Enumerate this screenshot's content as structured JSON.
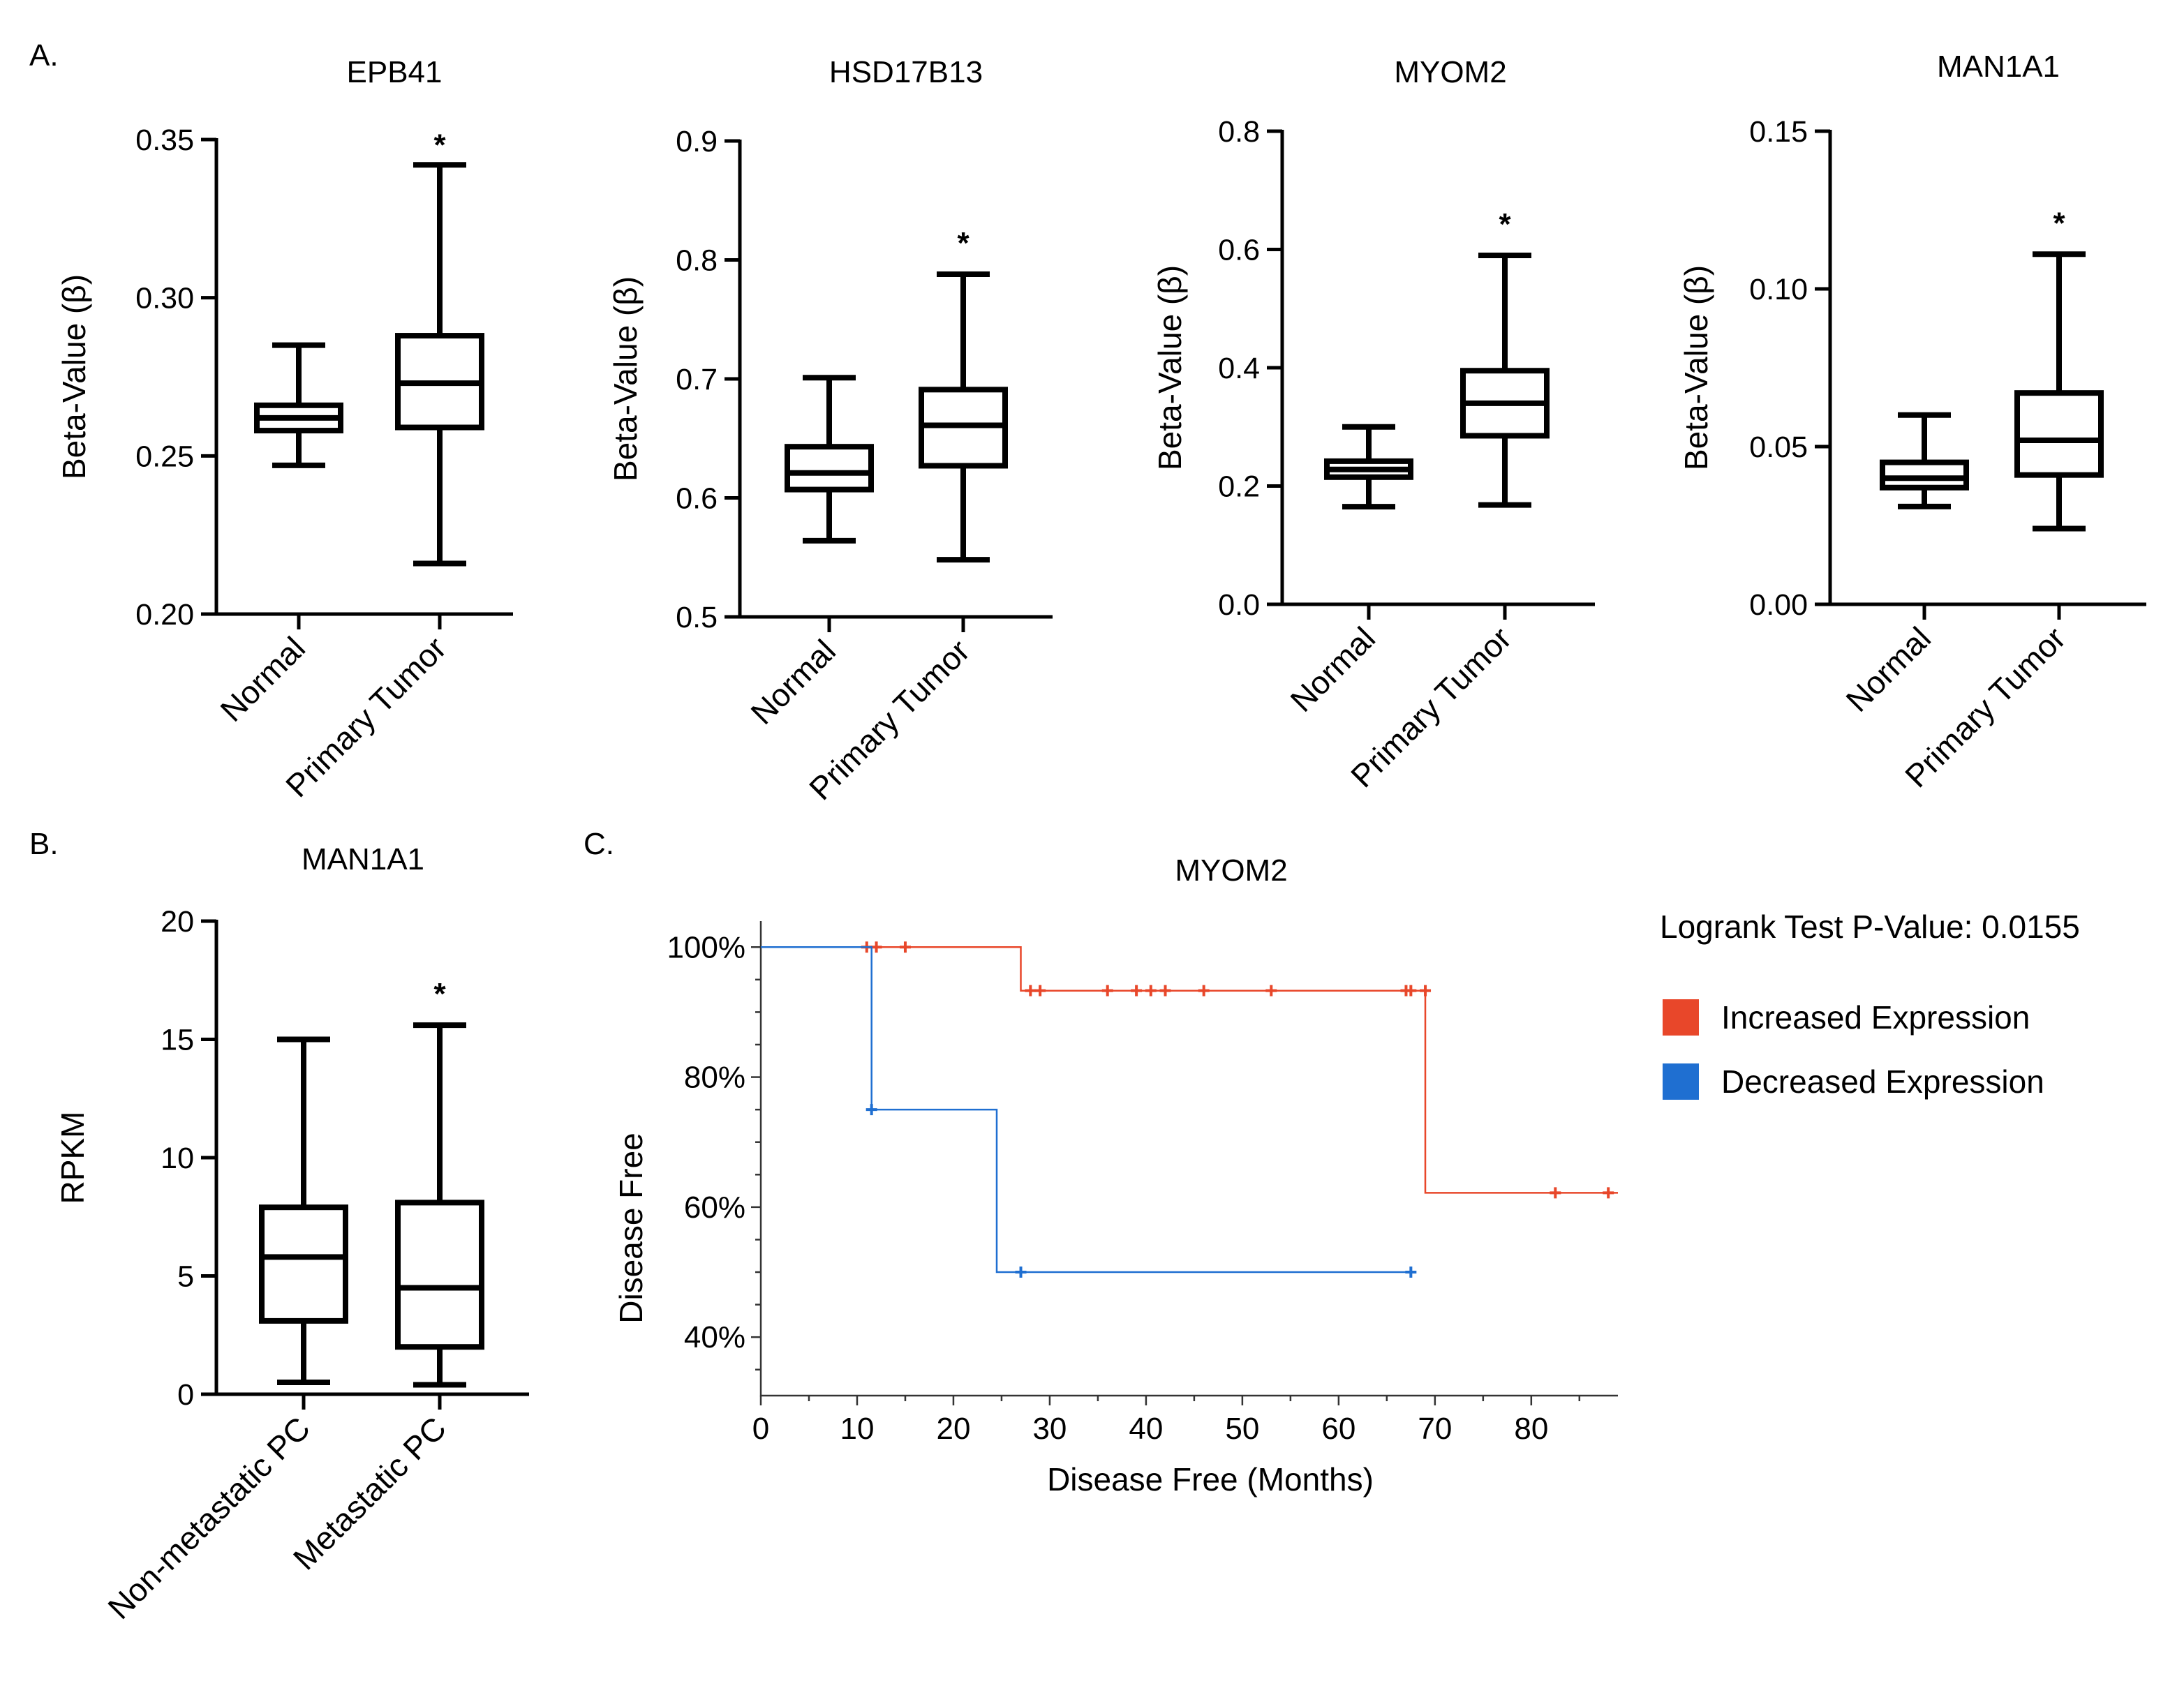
{
  "panels": {
    "A": "A.",
    "B": "B.",
    "C": "C."
  },
  "chart_data": [
    {
      "type": "box",
      "panel": "A",
      "title": "EPB41",
      "ylabel": "Beta-Value (β)",
      "ylim": [
        0.2,
        0.35
      ],
      "yticks": [
        "0.20",
        "0.25",
        "0.30",
        "0.35"
      ],
      "categories": [
        "Normal",
        "Primary Tumor"
      ],
      "boxes": [
        {
          "min": 0.247,
          "q1": 0.258,
          "median": 0.262,
          "q3": 0.266,
          "max": 0.285
        },
        {
          "min": 0.216,
          "q1": 0.259,
          "median": 0.273,
          "q3": 0.288,
          "max": 0.342
        }
      ],
      "annotation": "*"
    },
    {
      "type": "box",
      "panel": "A",
      "title": "HSD17B13",
      "ylabel": "Beta-Value (β)",
      "ylim": [
        0.5,
        0.9
      ],
      "yticks": [
        "0.5",
        "0.6",
        "0.7",
        "0.8",
        "0.9"
      ],
      "categories": [
        "Normal",
        "Primary Tumor"
      ],
      "boxes": [
        {
          "min": 0.564,
          "q1": 0.607,
          "median": 0.621,
          "q3": 0.643,
          "max": 0.701
        },
        {
          "min": 0.548,
          "q1": 0.627,
          "median": 0.661,
          "q3": 0.691,
          "max": 0.788
        }
      ],
      "annotation": "*"
    },
    {
      "type": "box",
      "panel": "A",
      "title": "MYOM2",
      "ylabel": "Beta-Value (β)",
      "ylim": [
        0.0,
        0.8
      ],
      "yticks": [
        "0.0",
        "0.2",
        "0.4",
        "0.6",
        "0.8"
      ],
      "categories": [
        "Normal",
        "Primary Tumor"
      ],
      "boxes": [
        {
          "min": 0.165,
          "q1": 0.215,
          "median": 0.228,
          "q3": 0.242,
          "max": 0.3
        },
        {
          "min": 0.168,
          "q1": 0.285,
          "median": 0.34,
          "q3": 0.395,
          "max": 0.59
        }
      ],
      "annotation": "*"
    },
    {
      "type": "box",
      "panel": "A",
      "title": "MAN1A1",
      "ylabel": "Beta-Value (β)",
      "ylim": [
        0.0,
        0.15
      ],
      "yticks": [
        "0.00",
        "0.05",
        "0.10",
        "0.15"
      ],
      "categories": [
        "Normal",
        "Primary Tumor"
      ],
      "boxes": [
        {
          "min": 0.031,
          "q1": 0.037,
          "median": 0.04,
          "q3": 0.045,
          "max": 0.06
        },
        {
          "min": 0.024,
          "q1": 0.041,
          "median": 0.052,
          "q3": 0.067,
          "max": 0.111
        }
      ],
      "annotation": "*"
    },
    {
      "type": "box",
      "panel": "B",
      "title": "MAN1A1",
      "ylabel": "RPKM",
      "ylim": [
        0,
        20
      ],
      "yticks": [
        "0",
        "5",
        "10",
        "15",
        "20"
      ],
      "categories": [
        "Non-metastatic PC",
        "Metastatic PC"
      ],
      "boxes": [
        {
          "min": 0.5,
          "q1": 3.1,
          "median": 5.8,
          "q3": 7.9,
          "max": 15.0
        },
        {
          "min": 0.4,
          "q1": 2.0,
          "median": 4.5,
          "q3": 8.1,
          "max": 15.6
        }
      ],
      "annotation": "*"
    },
    {
      "type": "line",
      "subtype": "kaplan-meier",
      "panel": "C",
      "title": "MYOM2",
      "xlabel": "Disease Free (Months)",
      "ylabel": "Disease Free",
      "xlim": [
        0,
        89
      ],
      "ylim": [
        31,
        104
      ],
      "xticks": [
        "0",
        "10",
        "20",
        "30",
        "40",
        "50",
        "60",
        "70",
        "80"
      ],
      "yticks": [
        "40%",
        "60%",
        "80%",
        "100%"
      ],
      "legend_position": "right",
      "stat_text": "Logrank Test P-Value: 0.0155",
      "series": [
        {
          "name": "Increased Expression",
          "color": "#e8472a",
          "steps": [
            [
              0,
              100
            ],
            [
              27,
              100
            ],
            [
              27,
              93.3
            ],
            [
              69,
              93.3
            ],
            [
              69,
              62.2
            ],
            [
              89,
              62.2
            ]
          ],
          "censored": [
            [
              11,
              100
            ],
            [
              12,
              100
            ],
            [
              15,
              100
            ],
            [
              28,
              93.3
            ],
            [
              29,
              93.3
            ],
            [
              36,
              93.3
            ],
            [
              39,
              93.3
            ],
            [
              40.5,
              93.3
            ],
            [
              42,
              93.3
            ],
            [
              46,
              93.3
            ],
            [
              53,
              93.3
            ],
            [
              67,
              93.3
            ],
            [
              67.5,
              93.3
            ],
            [
              69,
              93.3
            ],
            [
              82.5,
              62.2
            ],
            [
              88,
              62.2
            ]
          ]
        },
        {
          "name": "Decreased Expression",
          "color": "#1f6fd1",
          "steps": [
            [
              0,
              100
            ],
            [
              11.5,
              100
            ],
            [
              11.5,
              75
            ],
            [
              24.5,
              75
            ],
            [
              24.5,
              50
            ],
            [
              67.5,
              50
            ]
          ],
          "censored": [
            [
              11.5,
              75
            ],
            [
              27,
              50
            ],
            [
              67.5,
              50
            ]
          ]
        }
      ]
    }
  ]
}
